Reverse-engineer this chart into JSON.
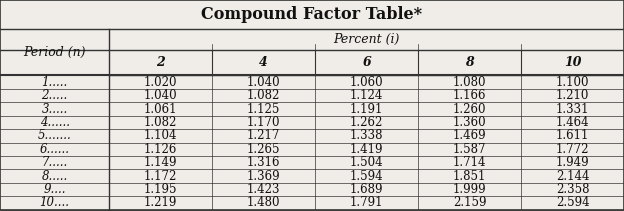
{
  "title": "Compound Factor Table*",
  "col_header_top": "Percent (i)",
  "col_header_row": [
    "2",
    "4",
    "6",
    "8",
    "10"
  ],
  "row_header_label": "Period (n)",
  "row_labels": [
    "1.....",
    "2.....",
    "3.....",
    "4......",
    "5.......",
    "6......",
    "7.....",
    "8.....",
    "9....",
    "10...."
  ],
  "table_data": [
    [
      "1.020",
      "1.040",
      "1.060",
      "1.080",
      "1.100"
    ],
    [
      "1.040",
      "1.082",
      "1.124",
      "1.166",
      "1.210"
    ],
    [
      "1.061",
      "1.125",
      "1.191",
      "1.260",
      "1.331"
    ],
    [
      "1.082",
      "1.170",
      "1.262",
      "1.360",
      "1.464"
    ],
    [
      "1.104",
      "1.217",
      "1.338",
      "1.469",
      "1.611"
    ],
    [
      "1.126",
      "1.265",
      "1.419",
      "1.587",
      "1.772"
    ],
    [
      "1.149",
      "1.316",
      "1.504",
      "1.714",
      "1.949"
    ],
    [
      "1.172",
      "1.369",
      "1.594",
      "1.851",
      "2.144"
    ],
    [
      "1.195",
      "1.423",
      "1.689",
      "1.999",
      "2.358"
    ],
    [
      "1.219",
      "1.480",
      "1.791",
      "2.159",
      "2.594"
    ]
  ],
  "bg_color": "#f0ede8",
  "line_color": "#333333",
  "text_color": "#111111",
  "title_fontsize": 11.5,
  "header_fontsize": 9,
  "data_fontsize": 8.5
}
